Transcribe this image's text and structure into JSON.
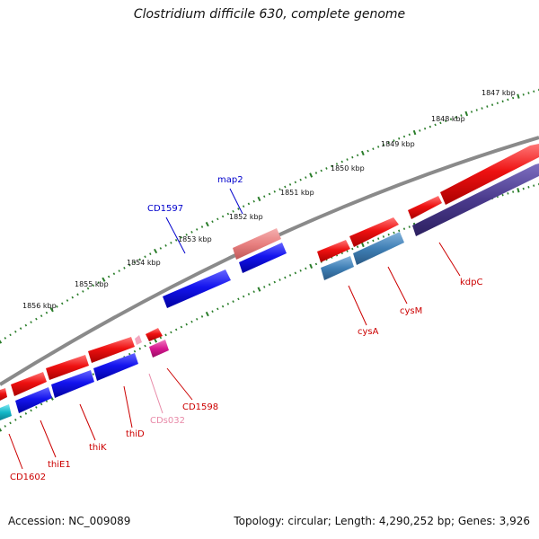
{
  "title": "Clostridium difficile 630, complete genome",
  "footer": {
    "accession": "Accession: NC_009089",
    "summary": "Topology: circular; Length: 4,290,252 bp; Genes: 3,926"
  },
  "colors": {
    "backbone": "#808080",
    "ticks": "#2a7d2a",
    "gene_red": "#ee1111",
    "gene_blue": "#1414ee",
    "gene_pink": "#e88080",
    "gene_steel": "#3f7fb5",
    "gene_purple": "#4a3a8c",
    "gene_cyan": "#12b8c8",
    "gene_magenta": "#d81890",
    "label_red": "#cc0000",
    "label_blue": "#0000cc",
    "label_pink": "#e88aa8"
  },
  "kbp_labels": [
    "1847 kbp",
    "1848 kbp",
    "1849 kbp",
    "1850 kbp",
    "1851 kbp",
    "1852 kbp",
    "1853 kbp",
    "1854 kbp",
    "1855 kbp",
    "1856 kbp"
  ],
  "gene_labels": [
    "CD1597",
    "map2",
    "kdpC",
    "cysM",
    "cysA",
    "CD1598",
    "CDs032",
    "thiD",
    "thiK",
    "thiE1",
    "CD1602"
  ]
}
